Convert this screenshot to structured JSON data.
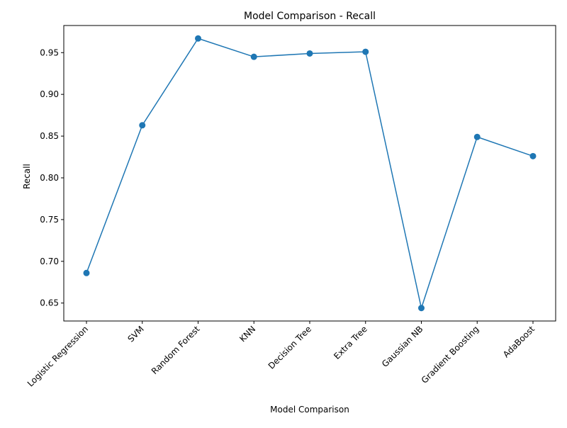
{
  "chart_data": {
    "type": "line",
    "title": "Model Comparison - Recall",
    "xlabel": "Model Comparison",
    "ylabel": "Recall",
    "categories": [
      "Logistic Regression",
      "SVM",
      "Random Forest",
      "KNN",
      "Decision Tree",
      "Extra Tree",
      "Gaussian NB",
      "Gradient Boosting",
      "AdaBoost"
    ],
    "series": [
      {
        "values": [
          0.686,
          0.863,
          0.967,
          0.945,
          0.949,
          0.951,
          0.644,
          0.849,
          0.826
        ],
        "color": "#1f77b4"
      }
    ],
    "ylim": [
      0.6285,
      0.9825
    ],
    "yticks": [
      0.65,
      0.7,
      0.75,
      0.8,
      0.85,
      0.9,
      0.95
    ],
    "ytick_labels": [
      "0.65",
      "0.70",
      "0.75",
      "0.80",
      "0.85",
      "0.90",
      "0.95"
    ],
    "grid": false,
    "legend": "none"
  }
}
